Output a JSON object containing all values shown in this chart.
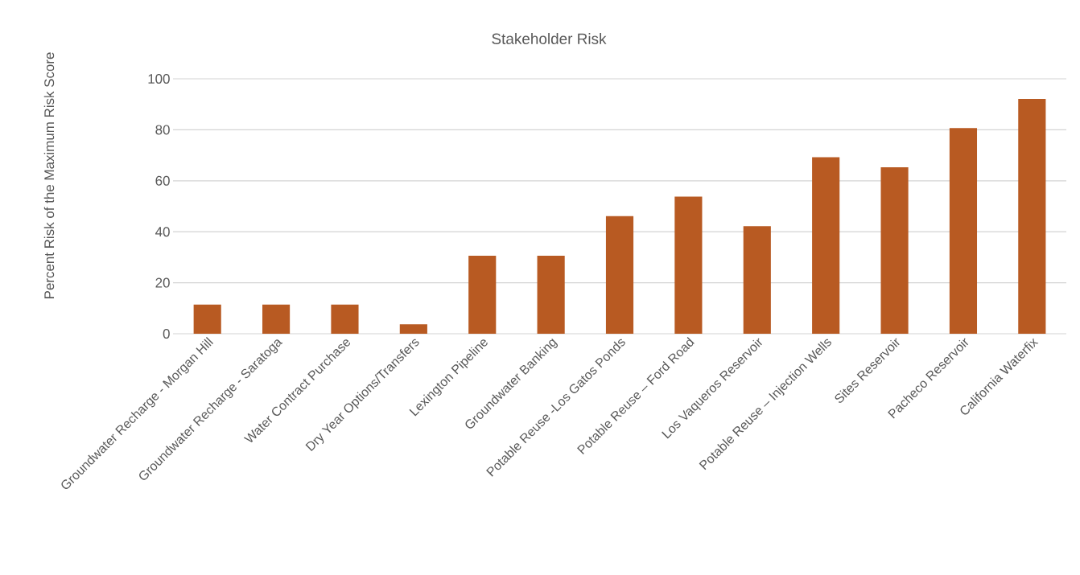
{
  "chart_data": {
    "type": "bar",
    "title": "Stakeholder Risk",
    "ylabel": "Percent Risk of the Maximum Risk Score",
    "categories": [
      "Groundwater Recharge - Morgan Hill",
      "Groundwater Recharge - Saratoga",
      "Water Contract Purchase",
      "Dry Year Options/Transfers",
      "Lexington Pipeline",
      "Groundwater Banking",
      "Potable Reuse -Los Gatos Ponds",
      "Potable Reuse – Ford Road",
      "Los Vaqueros Reservoir",
      "Potable Reuse – Injection Wells",
      "Sites Reservoir",
      "Pacheco Reservoir",
      "California Waterfix"
    ],
    "values": [
      11.4,
      11.4,
      11.4,
      3.7,
      30.6,
      30.6,
      46.1,
      53.8,
      42.2,
      69.2,
      65.3,
      80.7,
      92.1
    ],
    "color": "#b85a22",
    "ylim": [
      0,
      100
    ],
    "yticks": [
      0,
      20,
      40,
      60,
      80,
      100
    ],
    "grid": "y"
  }
}
